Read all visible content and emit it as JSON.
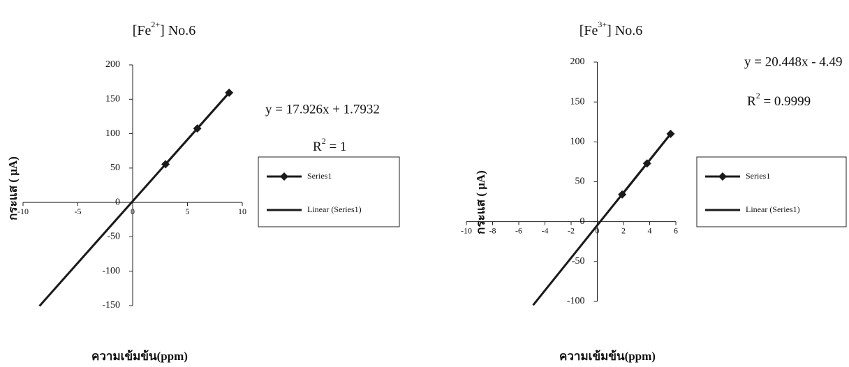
{
  "chart_data": [
    {
      "type": "scatter",
      "title": [
        "[Fe",
        "2+",
        "] No.6"
      ],
      "x_label": "ความเข้มข้น(ppm)",
      "y_label": "กระแส ( μA)",
      "equation": "y = 17.926x + 1.7932",
      "r_squared": [
        "R",
        "2",
        " = 1"
      ],
      "xlim": [
        -10,
        10
      ],
      "xticks": [
        -10,
        -5,
        0,
        5,
        10
      ],
      "ylim": [
        -150,
        200
      ],
      "yticks": [
        -150,
        -100,
        -50,
        0,
        50,
        100,
        150,
        200
      ],
      "legend": "right",
      "series": [
        {
          "name": "Series1",
          "color": "#1a1a1a",
          "marker": "diamond",
          "x": [
            3,
            5.9,
            8.8
          ],
          "values": [
            55.6,
            107.5,
            159.5
          ]
        },
        {
          "name": "Linear (Series1)",
          "color": "#1a1a1a",
          "marker": "none",
          "x": [
            -8.5,
            8.8
          ],
          "values": [
            -150.6,
            159.5
          ]
        }
      ]
    },
    {
      "type": "scatter",
      "title": [
        "[Fe",
        "3+",
        "] No.6"
      ],
      "x_label": "ความเข้มข้น(ppm)",
      "y_label": "กระแส ( μA)",
      "equation": "y = 20.448x - 4.49",
      "r_squared": [
        "R",
        "2",
        " = 0.9999"
      ],
      "xlim": [
        -10,
        6
      ],
      "xticks": [
        -10,
        -8,
        -6,
        -4,
        -2,
        0,
        2,
        4,
        6
      ],
      "ylim": [
        -100,
        200
      ],
      "yticks": [
        -100,
        -50,
        0,
        50,
        100,
        150,
        200
      ],
      "legend": "right",
      "series": [
        {
          "name": "Series1",
          "color": "#1a1a1a",
          "marker": "diamond",
          "x": [
            1.9,
            3.8,
            5.6
          ],
          "values": [
            34,
            73,
            110
          ]
        },
        {
          "name": "Linear (Series1)",
          "color": "#1a1a1a",
          "marker": "none",
          "x": [
            -4.9,
            5.6
          ],
          "values": [
            -104.7,
            110
          ]
        }
      ]
    }
  ]
}
